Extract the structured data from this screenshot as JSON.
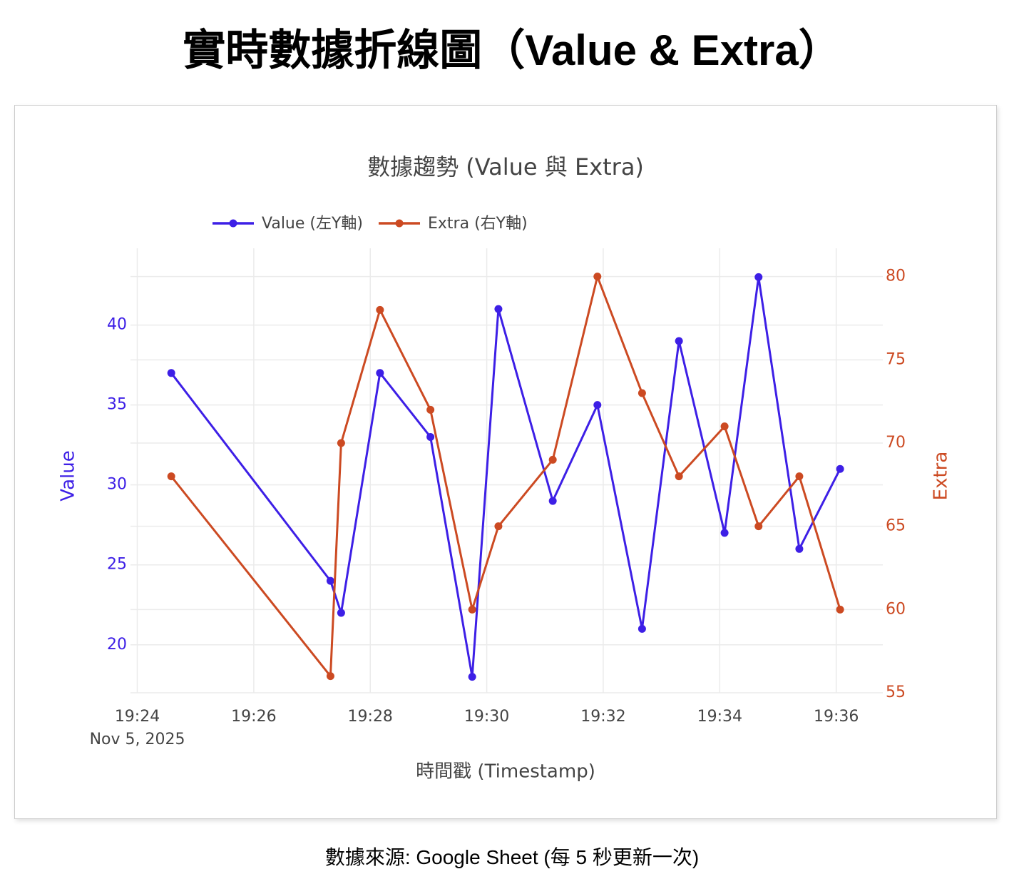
{
  "page": {
    "title": "實時數據折線圖（Value & Extra）",
    "footer": "數據來源: Google Sheet (每 5 秒更新一次)"
  },
  "chart_data": {
    "type": "line",
    "title": "數據趨勢 (Value 與 Extra)",
    "x_label": "時間戳 (Timestamp)",
    "y_label": "Value",
    "y2_label": "Extra",
    "x": [
      "2025-11-05T19:24:35",
      "2025-11-05T19:27:19",
      "2025-11-05T19:27:30",
      "2025-11-05T19:28:10",
      "2025-11-05T19:29:02",
      "2025-11-05T19:29:45",
      "2025-11-05T19:30:12",
      "2025-11-05T19:31:08",
      "2025-11-05T19:31:54",
      "2025-11-05T19:32:40",
      "2025-11-05T19:33:18",
      "2025-11-05T19:34:05",
      "2025-11-05T19:34:40",
      "2025-11-05T19:35:22",
      "2025-11-05T19:36:04"
    ],
    "xlim": [
      "2025-11-05T19:23:53",
      "2025-11-05T19:36:48"
    ],
    "xticks": [
      {
        "value": "2025-11-05T19:24:00",
        "label": "19:24"
      },
      {
        "value": "2025-11-05T19:26:00",
        "label": "19:26"
      },
      {
        "value": "2025-11-05T19:28:00",
        "label": "19:28"
      },
      {
        "value": "2025-11-05T19:30:00",
        "label": "19:30"
      },
      {
        "value": "2025-11-05T19:32:00",
        "label": "19:32"
      },
      {
        "value": "2025-11-05T19:34:00",
        "label": "19:34"
      },
      {
        "value": "2025-11-05T19:36:00",
        "label": "19:36"
      }
    ],
    "x_date_label": "Nov 5, 2025",
    "ylim": [
      17,
      44.8
    ],
    "yticks": [
      20,
      25,
      30,
      35,
      40
    ],
    "y2lim": [
      55,
      81.7
    ],
    "y2ticks": [
      55,
      60,
      65,
      70,
      75,
      80
    ],
    "grid": true,
    "legend": "top-left",
    "series": [
      {
        "name": "Value (左Y軸)",
        "color": "#3d1fe6",
        "values": [
          37,
          24,
          22,
          37,
          33,
          18,
          41,
          29,
          35,
          21,
          39,
          27,
          43,
          26,
          31
        ]
      },
      {
        "name": "Extra (右Y軸)",
        "color": "#cc4a22",
        "axis": "y2",
        "values": [
          68,
          56,
          70,
          78,
          72,
          60,
          65,
          69,
          80,
          73,
          68,
          71,
          65,
          68,
          60
        ]
      }
    ]
  }
}
